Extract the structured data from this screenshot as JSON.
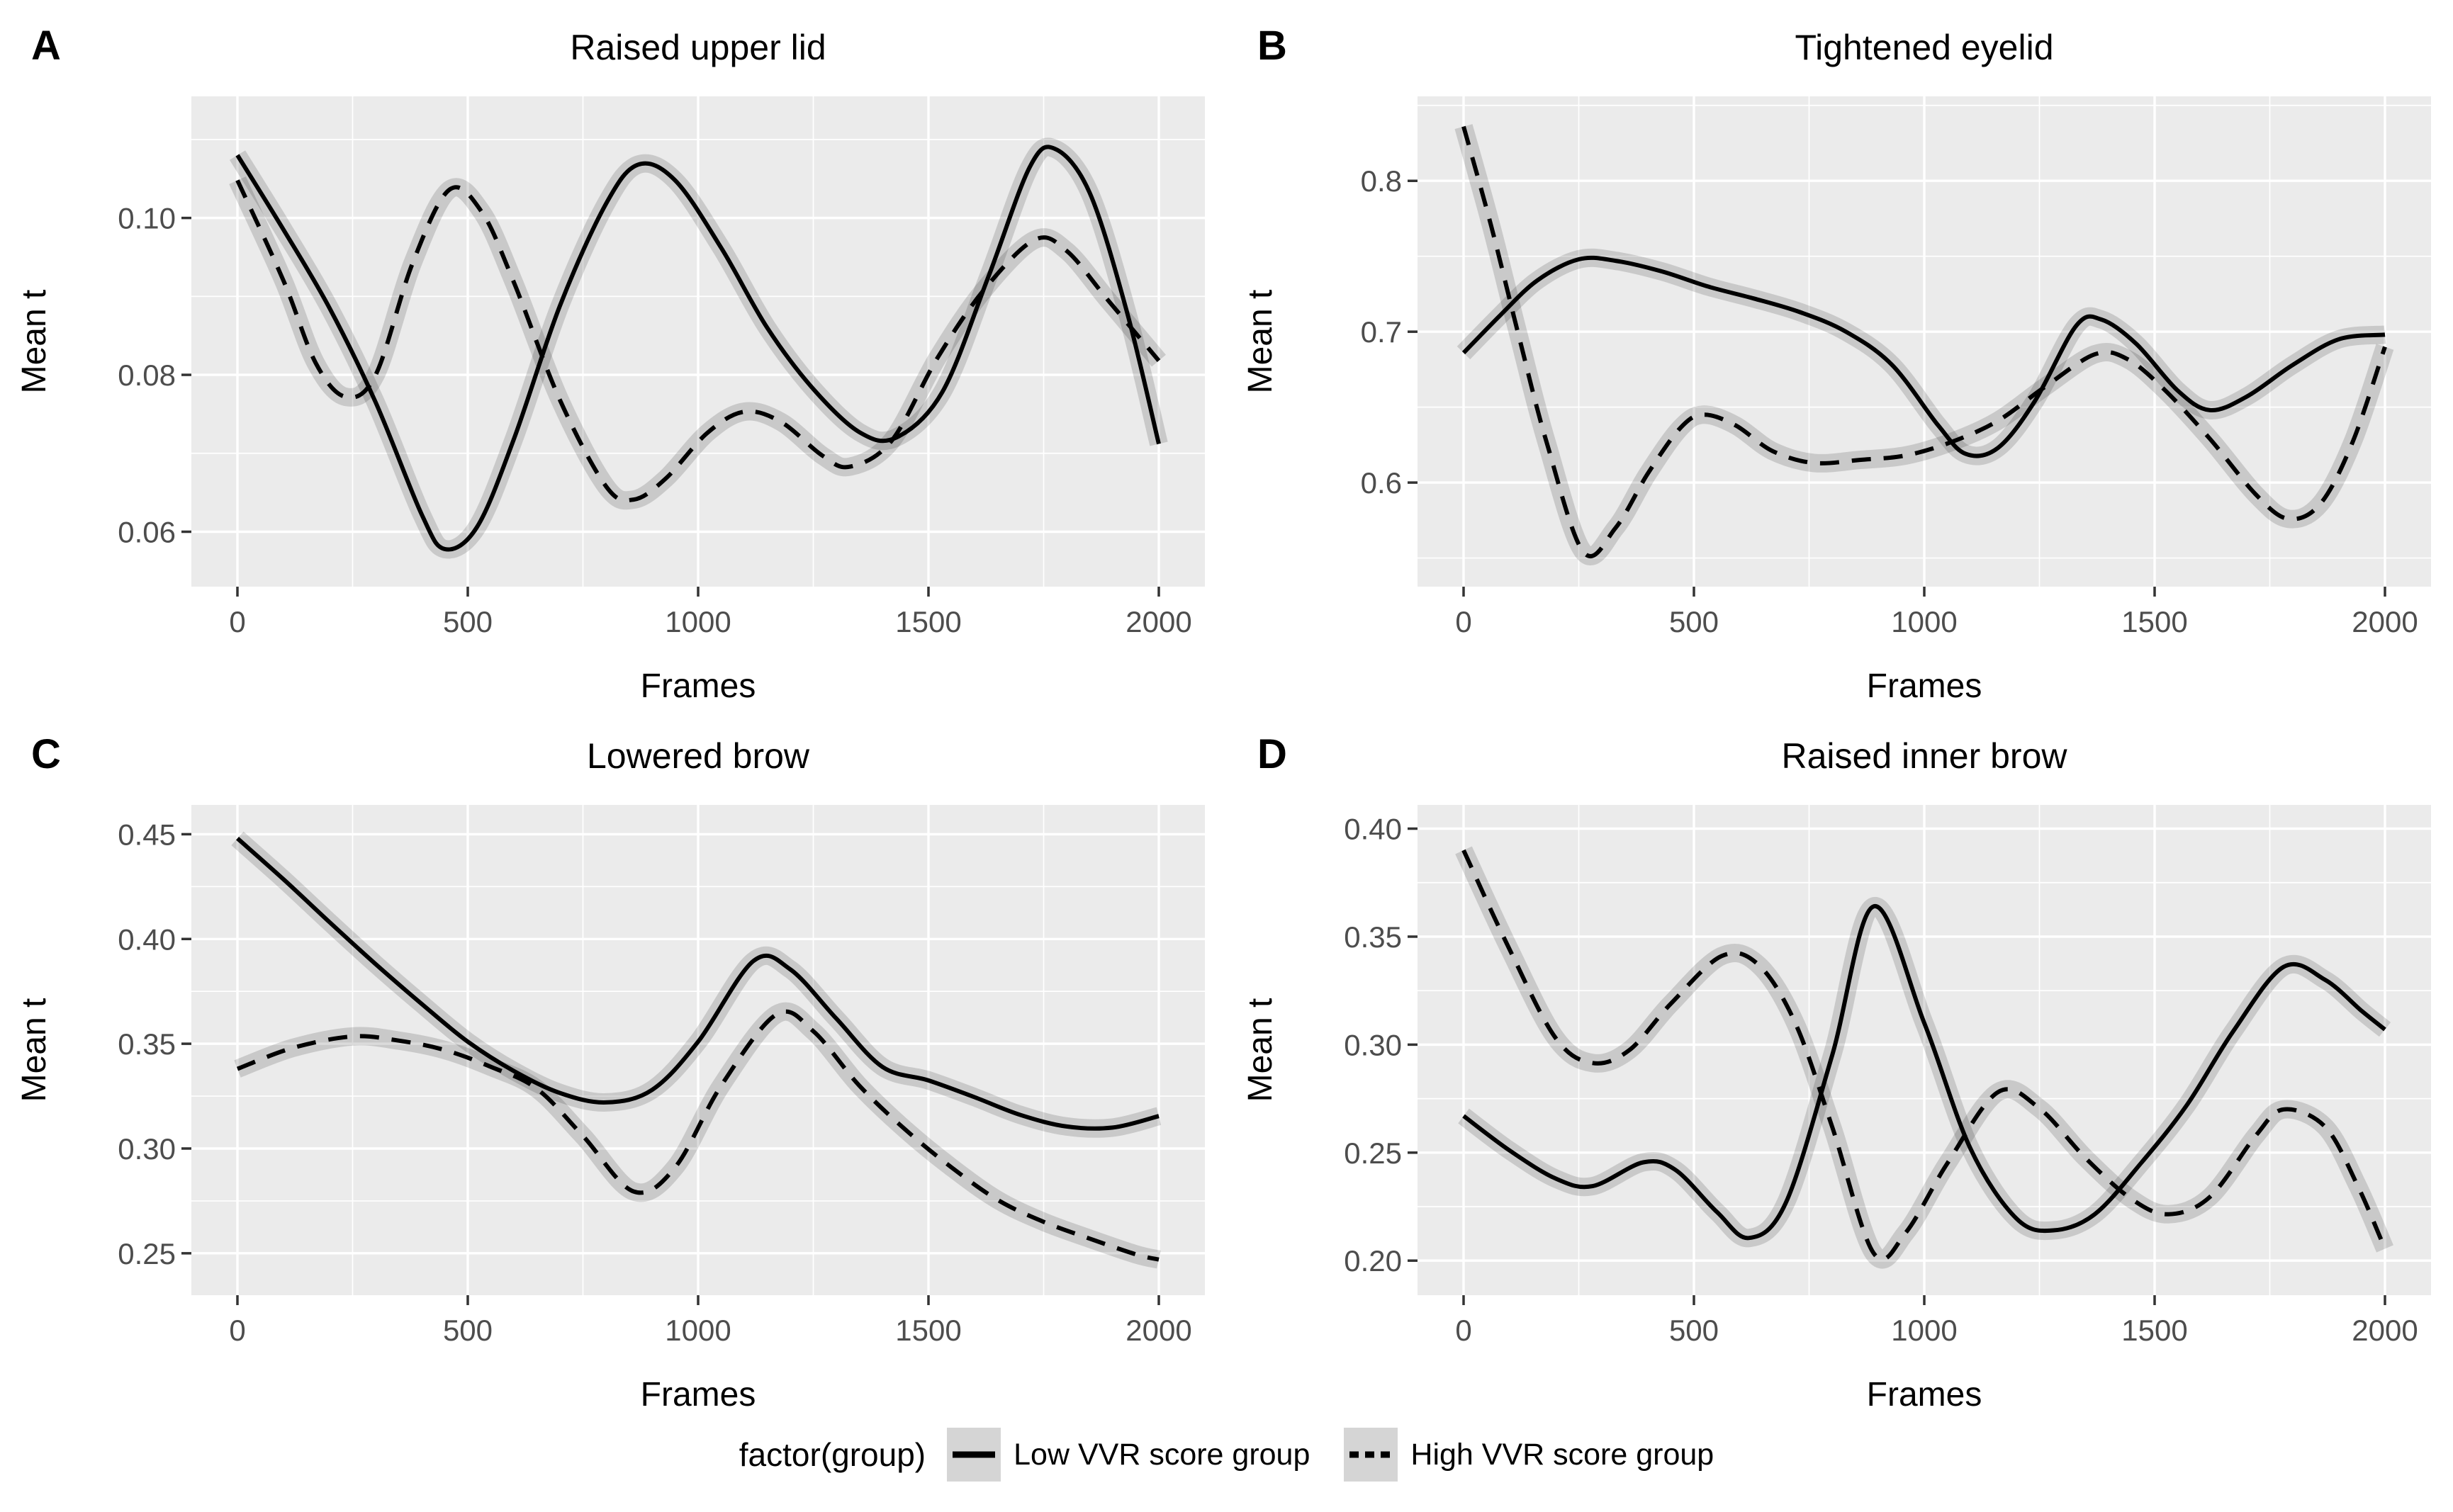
{
  "colors": {
    "panel_bg": "#EBEBEB",
    "grid": "#FFFFFF",
    "line": "#000000",
    "ribbon": "rgba(0,0,0,0.14)",
    "tick_label": "#4D4D4D",
    "tick_mark": "#333333",
    "legend_key_bg": "#D5D5D5"
  },
  "legend": {
    "title": "factor(group)",
    "items": [
      {
        "label": "Low VVR score group",
        "style": "solid"
      },
      {
        "label": "High VVR score group",
        "style": "dashed"
      }
    ]
  },
  "chart_data": [
    {
      "tag": "A",
      "type": "line",
      "title": "Raised upper lid",
      "xlabel": "Frames",
      "ylabel": "Mean t",
      "xlim": [
        -100,
        2100
      ],
      "ylim": [
        0.053,
        0.1155
      ],
      "x_ticks": [
        0,
        500,
        1000,
        1500,
        2000
      ],
      "x_tick_labels": [
        "0",
        "500",
        "1000",
        "1500",
        "2000"
      ],
      "x_minor": [
        250,
        750,
        1250,
        1750
      ],
      "y_ticks": [
        0.06,
        0.08,
        0.1
      ],
      "y_tick_labels": [
        "0.06",
        "0.08",
        "0.10"
      ],
      "y_minor": [
        0.07,
        0.09,
        0.11
      ],
      "grid": true,
      "legend_position": "bottom",
      "series": [
        {
          "name": "Low VVR score group",
          "style": "solid",
          "points": [
            [
              0,
              0.108
            ],
            [
              100,
              0.0985
            ],
            [
              200,
              0.0885
            ],
            [
              300,
              0.0765
            ],
            [
              400,
              0.0622
            ],
            [
              450,
              0.0578
            ],
            [
              520,
              0.0606
            ],
            [
              600,
              0.0718
            ],
            [
              700,
              0.0888
            ],
            [
              800,
              0.1018
            ],
            [
              870,
              0.1068
            ],
            [
              950,
              0.1048
            ],
            [
              1050,
              0.0962
            ],
            [
              1150,
              0.086
            ],
            [
              1250,
              0.0782
            ],
            [
              1350,
              0.0727
            ],
            [
              1430,
              0.072
            ],
            [
              1530,
              0.0778
            ],
            [
              1630,
              0.0925
            ],
            [
              1720,
              0.1065
            ],
            [
              1775,
              0.1088
            ],
            [
              1850,
              0.1032
            ],
            [
              1930,
              0.0882
            ],
            [
              2000,
              0.0712
            ]
          ]
        },
        {
          "name": "High VVR score group",
          "style": "dashed",
          "points": [
            [
              0,
              0.1048
            ],
            [
              100,
              0.092
            ],
            [
              170,
              0.0815
            ],
            [
              235,
              0.0772
            ],
            [
              300,
              0.08
            ],
            [
              380,
              0.0942
            ],
            [
              460,
              0.1036
            ],
            [
              530,
              0.1008
            ],
            [
              600,
              0.0918
            ],
            [
              700,
              0.0768
            ],
            [
              800,
              0.0658
            ],
            [
              860,
              0.0641
            ],
            [
              930,
              0.0668
            ],
            [
              1020,
              0.0726
            ],
            [
              1100,
              0.0753
            ],
            [
              1180,
              0.074
            ],
            [
              1270,
              0.0697
            ],
            [
              1330,
              0.0683
            ],
            [
              1420,
              0.0716
            ],
            [
              1520,
              0.0822
            ],
            [
              1620,
              0.0908
            ],
            [
              1730,
              0.0972
            ],
            [
              1800,
              0.0958
            ],
            [
              1890,
              0.0895
            ],
            [
              2000,
              0.0818
            ]
          ]
        }
      ]
    },
    {
      "tag": "B",
      "type": "line",
      "title": "Tightened eyelid",
      "xlabel": "Frames",
      "ylabel": "Mean t",
      "xlim": [
        -100,
        2100
      ],
      "ylim": [
        0.531,
        0.856
      ],
      "x_ticks": [
        0,
        500,
        1000,
        1500,
        2000
      ],
      "x_tick_labels": [
        "0",
        "500",
        "1000",
        "1500",
        "2000"
      ],
      "x_minor": [
        250,
        750,
        1250,
        1750
      ],
      "y_ticks": [
        0.6,
        0.7,
        0.8
      ],
      "y_tick_labels": [
        "0.6",
        "0.7",
        "0.8"
      ],
      "y_minor": [
        0.55,
        0.65,
        0.75,
        0.85
      ],
      "grid": true,
      "legend_position": "bottom",
      "series": [
        {
          "name": "Low VVR score group",
          "style": "solid",
          "points": [
            [
              0,
              0.686
            ],
            [
              80,
              0.711
            ],
            [
              160,
              0.734
            ],
            [
              250,
              0.748
            ],
            [
              330,
              0.747
            ],
            [
              430,
              0.74
            ],
            [
              530,
              0.73
            ],
            [
              630,
              0.722
            ],
            [
              730,
              0.713
            ],
            [
              830,
              0.7
            ],
            [
              930,
              0.678
            ],
            [
              1030,
              0.638
            ],
            [
              1090,
              0.619
            ],
            [
              1160,
              0.623
            ],
            [
              1240,
              0.654
            ],
            [
              1330,
              0.704
            ],
            [
              1385,
              0.708
            ],
            [
              1460,
              0.692
            ],
            [
              1550,
              0.661
            ],
            [
              1620,
              0.648
            ],
            [
              1700,
              0.657
            ],
            [
              1800,
              0.678
            ],
            [
              1900,
              0.695
            ],
            [
              2000,
              0.698
            ]
          ]
        },
        {
          "name": "High VVR score group",
          "style": "dashed",
          "points": [
            [
              0,
              0.836
            ],
            [
              60,
              0.77
            ],
            [
              120,
              0.697
            ],
            [
              180,
              0.627
            ],
            [
              260,
              0.554
            ],
            [
              330,
              0.57
            ],
            [
              400,
              0.606
            ],
            [
              470,
              0.636
            ],
            [
              520,
              0.645
            ],
            [
              590,
              0.638
            ],
            [
              670,
              0.621
            ],
            [
              760,
              0.613
            ],
            [
              860,
              0.615
            ],
            [
              960,
              0.618
            ],
            [
              1060,
              0.627
            ],
            [
              1160,
              0.641
            ],
            [
              1260,
              0.663
            ],
            [
              1370,
              0.685
            ],
            [
              1440,
              0.682
            ],
            [
              1520,
              0.662
            ],
            [
              1620,
              0.629
            ],
            [
              1720,
              0.592
            ],
            [
              1790,
              0.576
            ],
            [
              1860,
              0.586
            ],
            [
              1930,
              0.627
            ],
            [
              2000,
              0.69
            ]
          ]
        }
      ]
    },
    {
      "tag": "C",
      "type": "line",
      "title": "Lowered brow",
      "xlabel": "Frames",
      "ylabel": "Mean t",
      "xlim": [
        -100,
        2100
      ],
      "ylim": [
        0.23,
        0.464
      ],
      "x_ticks": [
        0,
        500,
        1000,
        1500,
        2000
      ],
      "x_tick_labels": [
        "0",
        "500",
        "1000",
        "1500",
        "2000"
      ],
      "x_minor": [
        250,
        750,
        1250,
        1750
      ],
      "y_ticks": [
        0.25,
        0.3,
        0.35,
        0.4,
        0.45
      ],
      "y_tick_labels": [
        "0.25",
        "0.30",
        "0.35",
        "0.40",
        "0.45"
      ],
      "y_minor": [
        0.275,
        0.325,
        0.375,
        0.425
      ],
      "grid": true,
      "legend_position": "bottom",
      "series": [
        {
          "name": "Low VVR score group",
          "style": "solid",
          "points": [
            [
              0,
              0.448
            ],
            [
              100,
              0.4285
            ],
            [
              200,
              0.408
            ],
            [
              300,
              0.388
            ],
            [
              400,
              0.369
            ],
            [
              500,
              0.351
            ],
            [
              600,
              0.337
            ],
            [
              700,
              0.3265
            ],
            [
              800,
              0.322
            ],
            [
              900,
              0.328
            ],
            [
              1000,
              0.351
            ],
            [
              1120,
              0.3895
            ],
            [
              1200,
              0.3855
            ],
            [
              1300,
              0.362
            ],
            [
              1400,
              0.339
            ],
            [
              1500,
              0.3325
            ],
            [
              1600,
              0.3245
            ],
            [
              1700,
              0.316
            ],
            [
              1800,
              0.3105
            ],
            [
              1900,
              0.31
            ],
            [
              2000,
              0.3155
            ]
          ]
        },
        {
          "name": "High VVR score group",
          "style": "dashed",
          "points": [
            [
              0,
              0.338
            ],
            [
              120,
              0.348
            ],
            [
              250,
              0.3535
            ],
            [
              350,
              0.3515
            ],
            [
              450,
              0.347
            ],
            [
              550,
              0.339
            ],
            [
              650,
              0.3285
            ],
            [
              750,
              0.306
            ],
            [
              860,
              0.2795
            ],
            [
              950,
              0.291
            ],
            [
              1050,
              0.33
            ],
            [
              1170,
              0.364
            ],
            [
              1250,
              0.356
            ],
            [
              1350,
              0.33
            ],
            [
              1450,
              0.309
            ],
            [
              1550,
              0.291
            ],
            [
              1650,
              0.2755
            ],
            [
              1750,
              0.265
            ],
            [
              1850,
              0.257
            ],
            [
              1950,
              0.2495
            ],
            [
              2000,
              0.247
            ]
          ]
        }
      ]
    },
    {
      "tag": "D",
      "type": "line",
      "title": "Raised inner brow",
      "xlabel": "Frames",
      "ylabel": "Mean t",
      "xlim": [
        -100,
        2100
      ],
      "ylim": [
        0.184,
        0.411
      ],
      "x_ticks": [
        0,
        500,
        1000,
        1500,
        2000
      ],
      "x_tick_labels": [
        "0",
        "500",
        "1000",
        "1500",
        "2000"
      ],
      "x_minor": [
        250,
        750,
        1250,
        1750
      ],
      "y_ticks": [
        0.2,
        0.25,
        0.3,
        0.35,
        0.4
      ],
      "y_tick_labels": [
        "0.20",
        "0.25",
        "0.30",
        "0.35",
        "0.40"
      ],
      "y_minor": [
        0.225,
        0.275,
        0.325,
        0.375
      ],
      "grid": true,
      "legend_position": "bottom",
      "series": [
        {
          "name": "Low VVR score group",
          "style": "solid",
          "points": [
            [
              0,
              0.267
            ],
            [
              100,
              0.251
            ],
            [
              200,
              0.238
            ],
            [
              280,
              0.2345
            ],
            [
              390,
              0.2455
            ],
            [
              460,
              0.242
            ],
            [
              550,
              0.2225
            ],
            [
              620,
              0.2105
            ],
            [
              700,
              0.227
            ],
            [
              800,
              0.295
            ],
            [
              890,
              0.364
            ],
            [
              1000,
              0.31
            ],
            [
              1100,
              0.252
            ],
            [
              1200,
              0.2195
            ],
            [
              1280,
              0.214
            ],
            [
              1370,
              0.2215
            ],
            [
              1470,
              0.245
            ],
            [
              1570,
              0.272
            ],
            [
              1670,
              0.306
            ],
            [
              1780,
              0.336
            ],
            [
              1870,
              0.33
            ],
            [
              1950,
              0.3155
            ],
            [
              2000,
              0.307
            ]
          ]
        },
        {
          "name": "High VVR score group",
          "style": "dashed",
          "points": [
            [
              0,
              0.39
            ],
            [
              100,
              0.344
            ],
            [
              200,
              0.303
            ],
            [
              280,
              0.2915
            ],
            [
              360,
              0.2975
            ],
            [
              450,
              0.319
            ],
            [
              560,
              0.341
            ],
            [
              640,
              0.337
            ],
            [
              720,
              0.31
            ],
            [
              800,
              0.262
            ],
            [
              890,
              0.2035
            ],
            [
              960,
              0.213
            ],
            [
              1050,
              0.245
            ],
            [
              1160,
              0.278
            ],
            [
              1250,
              0.2705
            ],
            [
              1350,
              0.2475
            ],
            [
              1450,
              0.2285
            ],
            [
              1530,
              0.2215
            ],
            [
              1620,
              0.2295
            ],
            [
              1720,
              0.258
            ],
            [
              1780,
              0.27
            ],
            [
              1870,
              0.262
            ],
            [
              1940,
              0.235
            ],
            [
              2000,
              0.2055
            ]
          ]
        }
      ]
    }
  ]
}
